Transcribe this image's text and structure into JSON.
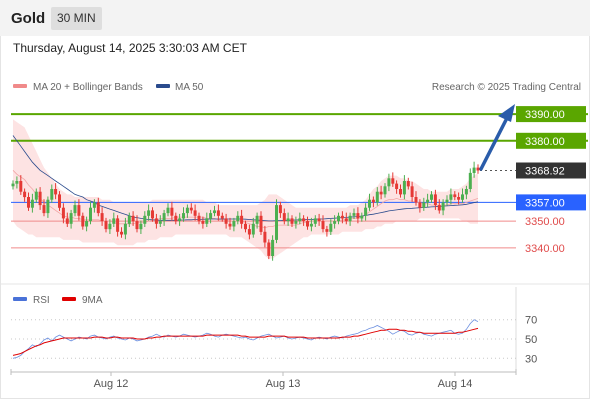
{
  "header": {
    "title": "Gold",
    "timeframe": "30 MIN"
  },
  "datetime": "Thursday, August 14, 2025 3:30:03 AM CET",
  "legend": {
    "bollinger": "MA 20 + Bollinger Bands",
    "ma50": "MA 50",
    "credit": "Research © 2025 Trading Central",
    "rsi": "RSI",
    "rsi_ma": "9MA"
  },
  "colors": {
    "resistance": "#5aa600",
    "support": "#f08a8a",
    "current": "#333333",
    "pivot": "#2962ff",
    "bollinger": "#f5a0a0",
    "ma50": "#2a4b8d",
    "up_candle": "#4caf50",
    "down_candle": "#e53935",
    "arrow": "#2a5caa"
  },
  "chart_data": [
    {
      "type": "candlestick",
      "ylim": [
        3328,
        3396
      ],
      "x_ticks": [
        "Aug 12",
        "Aug 13",
        "Aug 14"
      ],
      "levels": [
        {
          "label": "3390.00",
          "value": 3390.0,
          "kind": "resistance"
        },
        {
          "label": "3380.00",
          "value": 3380.0,
          "kind": "resistance"
        },
        {
          "label": "3368.92",
          "value": 3368.92,
          "kind": "current"
        },
        {
          "label": "3357.00",
          "value": 3357.0,
          "kind": "pivot"
        },
        {
          "label": "3350.00",
          "value": 3350.0,
          "kind": "support"
        },
        {
          "label": "3340.00",
          "value": 3340.0,
          "kind": "support"
        }
      ],
      "close": [
        3364,
        3365,
        3361,
        3359,
        3355,
        3358,
        3361,
        3356,
        3353,
        3358,
        3362,
        3360,
        3355,
        3351,
        3349,
        3353,
        3356,
        3352,
        3348,
        3350,
        3355,
        3357,
        3353,
        3350,
        3347,
        3349,
        3351,
        3346,
        3345,
        3349,
        3352,
        3350,
        3347,
        3349,
        3352,
        3354,
        3351,
        3349,
        3350,
        3353,
        3355,
        3352,
        3350,
        3351,
        3353,
        3355,
        3354,
        3352,
        3350,
        3349,
        3351,
        3353,
        3354,
        3352,
        3351,
        3349,
        3348,
        3350,
        3352,
        3349,
        3347,
        3345,
        3349,
        3352,
        3346,
        3342,
        3337,
        3343,
        3356,
        3353,
        3350,
        3351,
        3349,
        3350,
        3351,
        3350,
        3348,
        3349,
        3351,
        3350,
        3347,
        3346,
        3349,
        3350,
        3352,
        3351,
        3350,
        3352,
        3353,
        3351,
        3352,
        3355,
        3358,
        3357,
        3361,
        3360,
        3363,
        3366,
        3364,
        3362,
        3360,
        3365,
        3363,
        3359,
        3357,
        3355,
        3357,
        3358,
        3360,
        3356,
        3354,
        3357,
        3358,
        3360,
        3359,
        3358,
        3360,
        3362,
        3368,
        3370,
        3368.92
      ],
      "ma50": [
        3382,
        3380,
        3378,
        3376,
        3374,
        3372,
        3370.5,
        3369,
        3368,
        3367,
        3366,
        3365,
        3364,
        3363,
        3362,
        3361,
        3360,
        3359.5,
        3359,
        3358,
        3357.5,
        3357,
        3356,
        3355.5,
        3355,
        3354.5,
        3354,
        3353.5,
        3353,
        3352.5,
        3352,
        3351.5,
        3351.3,
        3351,
        3350.8,
        3350.6,
        3350.5,
        3350.4,
        3350.3,
        3350.3,
        3350.3,
        3350.3,
        3350.3,
        3350.4,
        3350.4,
        3350.5,
        3350.5,
        3350.6,
        3350.6,
        3350.7,
        3350.7,
        3350.8,
        3350.8,
        3350.8,
        3350.8,
        3350.8,
        3350.8,
        3350.8,
        3350.8,
        3350.8,
        3350.7,
        3350.6,
        3350.5,
        3350.4,
        3350.3,
        3350.2,
        3350.1,
        3350.1,
        3350.2,
        3350.2,
        3350.3,
        3350.3,
        3350.4,
        3350.4,
        3350.5,
        3350.5,
        3350.6,
        3350.6,
        3350.7,
        3350.8,
        3350.8,
        3350.9,
        3351,
        3351.1,
        3351.2,
        3351.3,
        3351.4,
        3351.5,
        3351.6,
        3351.7,
        3351.9,
        3352.1,
        3352.4,
        3352.6,
        3352.9,
        3353.2,
        3353.5,
        3353.8,
        3354,
        3354.2,
        3354.4,
        3354.6,
        3354.7,
        3354.8,
        3354.9,
        3355,
        3355.1,
        3355.2,
        3355.3,
        3355.4,
        3355.5,
        3355.6,
        3355.7,
        3355.8,
        3355.9,
        3356,
        3356.1,
        3356.3,
        3356.6,
        3356.9,
        3357.2
      ],
      "bollinger_upper": [
        3388,
        3387,
        3386,
        3385,
        3382,
        3379,
        3376,
        3373,
        3370,
        3368,
        3366,
        3364,
        3362,
        3361,
        3360,
        3360,
        3359,
        3359,
        3359,
        3359,
        3359,
        3359,
        3359,
        3358,
        3358,
        3358,
        3357,
        3357,
        3357,
        3357,
        3357,
        3357,
        3357,
        3357,
        3357,
        3357,
        3358,
        3358,
        3358,
        3358,
        3358,
        3358,
        3358,
        3358,
        3358,
        3358,
        3358,
        3358,
        3358,
        3358,
        3357,
        3357,
        3357,
        3356,
        3356,
        3356,
        3356,
        3356,
        3356,
        3356,
        3356,
        3356,
        3356,
        3356,
        3357,
        3358,
        3360,
        3360,
        3360,
        3359,
        3358,
        3357,
        3356,
        3355,
        3355,
        3355,
        3355,
        3355,
        3355,
        3355,
        3355,
        3355,
        3355,
        3355,
        3355,
        3355,
        3355,
        3356,
        3356,
        3356,
        3357,
        3358,
        3360,
        3362,
        3363,
        3365,
        3366,
        3367,
        3367,
        3367,
        3366,
        3366,
        3365,
        3365,
        3364,
        3363,
        3362,
        3362,
        3361,
        3361,
        3361,
        3361,
        3361,
        3362,
        3362,
        3362,
        3363,
        3364,
        3366,
        3367,
        3368
      ],
      "bollinger_lower": [
        3350,
        3348,
        3347,
        3346,
        3345,
        3345,
        3344,
        3344,
        3344,
        3344,
        3344,
        3344,
        3344,
        3343,
        3343,
        3343,
        3343,
        3343,
        3342,
        3342,
        3342,
        3342,
        3342,
        3342,
        3342,
        3342,
        3342,
        3341,
        3341,
        3341,
        3341,
        3341,
        3342,
        3342,
        3342,
        3343,
        3343,
        3343,
        3344,
        3344,
        3344,
        3344,
        3345,
        3345,
        3345,
        3345,
        3345,
        3345,
        3345,
        3345,
        3345,
        3345,
        3345,
        3345,
        3345,
        3345,
        3344,
        3344,
        3344,
        3344,
        3343,
        3342,
        3341,
        3340,
        3339,
        3337,
        3336,
        3336,
        3337,
        3338,
        3339,
        3340,
        3341,
        3342,
        3343,
        3344,
        3344,
        3345,
        3345,
        3345,
        3345,
        3345,
        3345,
        3345,
        3345,
        3346,
        3346,
        3346,
        3346,
        3346,
        3346,
        3347,
        3347,
        3347,
        3348,
        3348,
        3349,
        3349,
        3349,
        3350,
        3350,
        3350,
        3350,
        3350,
        3350,
        3351,
        3351,
        3351,
        3351,
        3351,
        3351,
        3351,
        3351,
        3351,
        3351,
        3351,
        3350,
        3350,
        3349,
        3349,
        3349
      ]
    },
    {
      "type": "line",
      "title": "RSI",
      "ylim": [
        20,
        80
      ],
      "y_ticks": [
        70,
        50,
        30
      ],
      "series": [
        {
          "name": "RSI",
          "values": [
            30,
            31,
            33,
            37,
            40,
            44,
            42,
            45,
            49,
            51,
            48,
            52,
            54,
            52,
            50,
            48,
            50,
            52,
            51,
            50,
            53,
            54,
            52,
            51,
            50,
            52,
            53,
            51,
            50,
            49,
            51,
            50,
            48,
            49,
            50,
            52,
            53,
            55,
            53,
            52,
            54,
            53,
            52,
            53,
            55,
            54,
            53,
            52,
            53,
            54,
            56,
            55,
            53,
            52,
            54,
            55,
            54,
            53,
            52,
            51,
            52,
            50,
            49,
            51,
            53,
            54,
            55,
            53,
            51,
            52,
            53,
            51,
            50,
            51,
            52,
            51,
            50,
            49,
            51,
            52,
            51,
            50,
            52,
            53,
            52,
            51,
            53,
            54,
            55,
            56,
            58,
            59,
            61,
            62,
            64,
            62,
            60,
            58,
            55,
            57,
            59,
            58,
            55,
            54,
            56,
            57,
            55,
            54,
            53,
            55,
            56,
            57,
            58,
            59,
            56,
            55,
            56,
            60,
            66,
            70,
            68
          ]
        },
        {
          "name": "9MA",
          "values": [
            33,
            34,
            35,
            37,
            39,
            41,
            43,
            44,
            46,
            47,
            48,
            49,
            50,
            51,
            51,
            51,
            51,
            51,
            51,
            51,
            51,
            52,
            52,
            52,
            51,
            51,
            52,
            52,
            51,
            51,
            51,
            51,
            50,
            50,
            50,
            51,
            51,
            52,
            52,
            53,
            53,
            53,
            53,
            53,
            53,
            53,
            53,
            53,
            53,
            53,
            54,
            54,
            54,
            54,
            54,
            54,
            54,
            54,
            54,
            53,
            53,
            52,
            52,
            52,
            52,
            52,
            53,
            53,
            53,
            53,
            53,
            52,
            52,
            52,
            52,
            52,
            51,
            51,
            51,
            51,
            51,
            51,
            51,
            51,
            51,
            52,
            52,
            52,
            53,
            53,
            54,
            55,
            56,
            57,
            58,
            59,
            59,
            60,
            60,
            60,
            59,
            59,
            58,
            58,
            57,
            57,
            56,
            56,
            56,
            56,
            56,
            56,
            56,
            56,
            56,
            57,
            57,
            58,
            59,
            60,
            61
          ]
        }
      ]
    }
  ]
}
